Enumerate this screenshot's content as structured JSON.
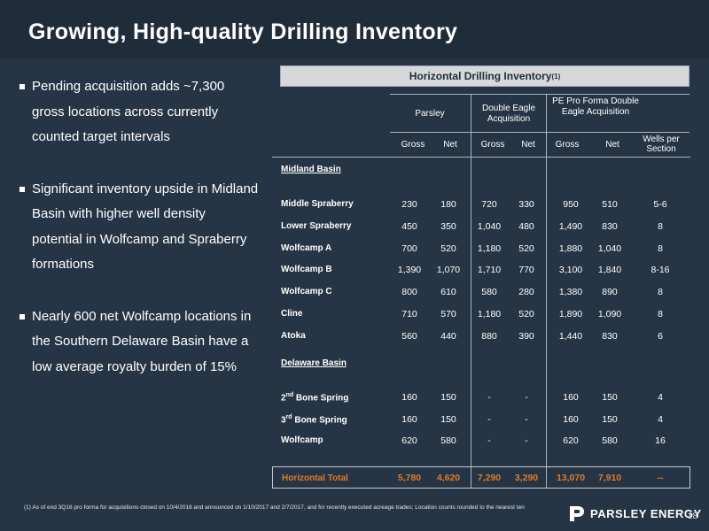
{
  "title": "Growing, High-quality Drilling Inventory",
  "bullets": [
    "Pending acquisition adds ~7,300 gross locations across currently counted target intervals",
    "Significant inventory upside in Midland Basin with higher well density potential in Wolfcamp and Spraberry formations",
    "Nearly 600 net Wolfcamp locations in the Southern Delaware Basin have a low average royalty burden of 15%"
  ],
  "table": {
    "header_text": "Horizontal Drilling Inventory",
    "header_sup": "(1)",
    "groups": [
      "Parsley",
      "Double Eagle Acquisition",
      "PE Pro Forma Double Eagle Acquisition"
    ],
    "subheaders": [
      "Gross",
      "Net",
      "Gross",
      "Net",
      "Gross",
      "Net",
      "Wells per Section"
    ],
    "sections": [
      "Midland Basin",
      "Delaware Basin"
    ],
    "rows": [
      {
        "label": "Middle Spraberry",
        "sup": "",
        "values": [
          "230",
          "180",
          "720",
          "330",
          "950",
          "510",
          "5-6"
        ]
      },
      {
        "label": "Lower Spraberry",
        "sup": "",
        "values": [
          "450",
          "350",
          "1,040",
          "480",
          "1,490",
          "830",
          "8"
        ]
      },
      {
        "label": "Wolfcamp A",
        "sup": "",
        "values": [
          "700",
          "520",
          "1,180",
          "520",
          "1,880",
          "1,040",
          "8"
        ]
      },
      {
        "label": "Wolfcamp B",
        "sup": "",
        "values": [
          "1,390",
          "1,070",
          "1,710",
          "770",
          "3,100",
          "1,840",
          "8-16"
        ]
      },
      {
        "label": "Wolfcamp C",
        "sup": "",
        "values": [
          "800",
          "610",
          "580",
          "280",
          "1,380",
          "890",
          "8"
        ]
      },
      {
        "label": "Cline",
        "sup": "",
        "values": [
          "710",
          "570",
          "1,180",
          "520",
          "1,890",
          "1,090",
          "8"
        ]
      },
      {
        "label": "Atoka",
        "sup": "",
        "values": [
          "560",
          "440",
          "880",
          "390",
          "1,440",
          "830",
          "6"
        ]
      },
      {
        "label_pre": "2",
        "sup": "nd",
        "label": " Bone Spring",
        "values": [
          "160",
          "150",
          "-",
          "-",
          "160",
          "150",
          "4"
        ]
      },
      {
        "label_pre": "3",
        "sup": "rd",
        "label": " Bone Spring",
        "values": [
          "160",
          "150",
          "-",
          "-",
          "160",
          "150",
          "4"
        ]
      },
      {
        "label": "Wolfcamp",
        "sup": "",
        "values": [
          "620",
          "580",
          "-",
          "-",
          "620",
          "580",
          "16"
        ]
      }
    ],
    "total": {
      "label": "Horizontal Total",
      "values": [
        "5,780",
        "4,620",
        "7,290",
        "3,290",
        "13,070",
        "7,910",
        "--"
      ]
    }
  },
  "footnote": "(1) As of end 3Q16 pro forma for acquisitions closed on 10/4/2016 and announced on 1/10/2017 and 2/7/2017, and for recently executed acreage trades; Location counts rounded to the nearest ten",
  "logo_text": "PARSLEY ENERGY",
  "page_number": "18",
  "colors": {
    "background": "#263545",
    "title_bar": "#1f2d3b",
    "total_accent": "#e07a28"
  }
}
